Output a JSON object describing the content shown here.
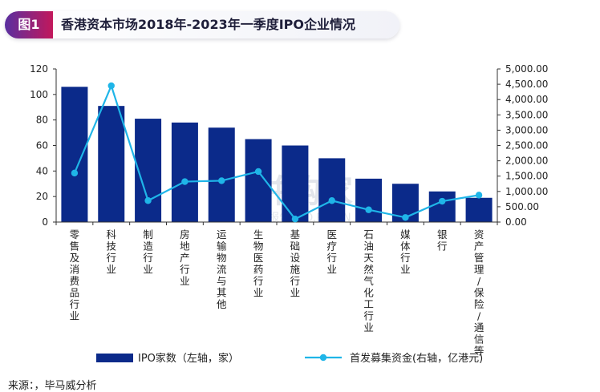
{
  "header": {
    "badge": "图1",
    "title": "香港资本市场2018年-2023年一季度IPO企业情况"
  },
  "source": "来源：，毕马威分析",
  "watermark": {
    "main": "并购家",
    "sub": "行业报告 IPO.PO.CN"
  },
  "colors": {
    "bar": "#0b2a8a",
    "line": "#1fb5e8",
    "badge_start": "#5a2fa0",
    "badge_end": "#c2185b"
  },
  "chart_data": {
    "type": "bar",
    "categories": [
      "零售及消费品行业",
      "科技行业",
      "制造行业",
      "房地产行业",
      "运输物流与其他",
      "生物医药行业",
      "基础设施行业",
      "医疗行业",
      "石油天然气化工行业",
      "媒体行业",
      "银行",
      "资产管理/保险/通信等"
    ],
    "series": [
      {
        "name": "IPO家数（左轴，家）",
        "type": "bar",
        "axis": "left",
        "values": [
          106,
          91,
          81,
          78,
          74,
          65,
          60,
          50,
          34,
          30,
          24,
          19
        ]
      },
      {
        "name": "首发募集资金(右轴，亿港元)",
        "type": "line",
        "axis": "right",
        "values": [
          1600,
          4450,
          700,
          1320,
          1350,
          1650,
          100,
          700,
          400,
          150,
          680,
          880
        ]
      }
    ],
    "left_axis": {
      "ticks": [
        "0",
        "20",
        "40",
        "60",
        "80",
        "100",
        "120"
      ],
      "ylim": [
        0,
        120
      ]
    },
    "right_axis": {
      "ticks": [
        "0.00",
        "500.00",
        "1,000.00",
        "1,500.00",
        "2,000.00",
        "2,500.00",
        "3,000.00",
        "3,500.00",
        "4,000.00",
        "4,500.00",
        "5,000.00"
      ],
      "ylim": [
        0,
        5000
      ]
    },
    "grid": false,
    "legend_position": "bottom"
  }
}
